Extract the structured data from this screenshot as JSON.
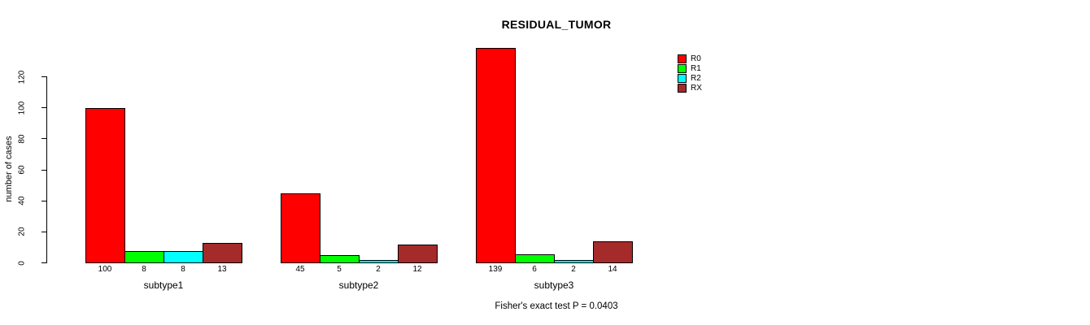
{
  "chart_data": {
    "type": "bar",
    "title": "RESIDUAL_TUMOR",
    "ylabel": "number of cases",
    "xlabel": "",
    "categories": [
      "subtype1",
      "subtype2",
      "subtype3"
    ],
    "series": [
      {
        "name": "R0",
        "color": "#FF0000",
        "values": [
          100,
          45,
          139
        ]
      },
      {
        "name": "R1",
        "color": "#00FF00",
        "values": [
          8,
          5,
          6
        ]
      },
      {
        "name": "R2",
        "color": "#00FFFF",
        "values": [
          8,
          2,
          2
        ]
      },
      {
        "name": "RX",
        "color": "#A52A2A",
        "values": [
          13,
          12,
          14
        ]
      }
    ],
    "y_ticks": [
      0,
      20,
      40,
      60,
      80,
      100,
      120
    ],
    "ylim": [
      0,
      139
    ],
    "grid": false,
    "legend_position": "top-right",
    "annotation": "Fisher's exact test P = 0.0403"
  }
}
